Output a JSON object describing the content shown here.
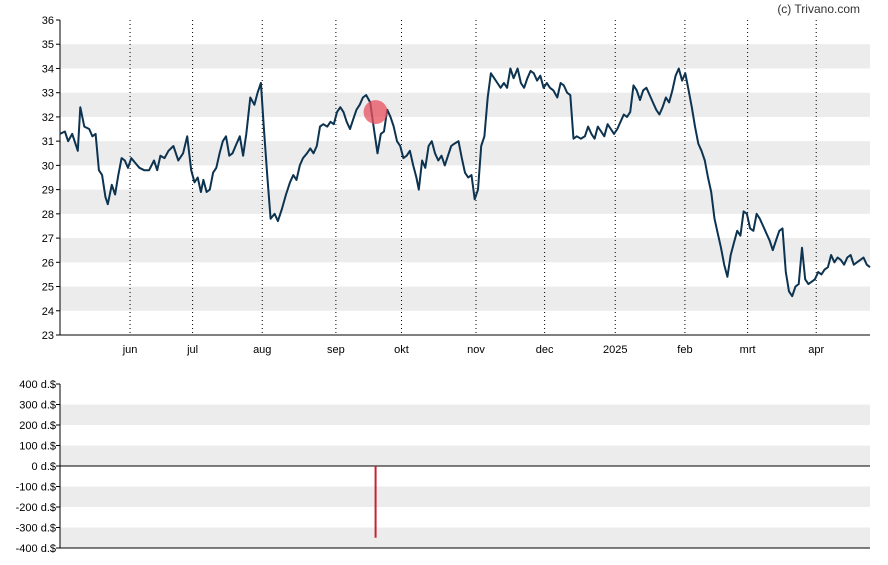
{
  "credit": "(c) Trivano.com",
  "colors": {
    "background": "#ffffff",
    "band": "#ececec",
    "line": "#0c3350",
    "marker": "#e8505f",
    "volume_bar": "#cc1f2f",
    "grid_vertical": "#000000",
    "axis": "#000000"
  },
  "chart_data": [
    {
      "type": "line",
      "name": "price",
      "ylim": [
        23,
        36
      ],
      "yticks": [
        23,
        24,
        25,
        26,
        27,
        28,
        29,
        30,
        31,
        32,
        33,
        34,
        35,
        36
      ],
      "ytick_labels": [
        "23",
        "24",
        "25",
        "26",
        "27",
        "28",
        "29",
        "30",
        "31",
        "32",
        "33",
        "34",
        "35",
        "36"
      ],
      "xticks": [
        {
          "label": "jun",
          "t": 0.0865
        },
        {
          "label": "jul",
          "t": 0.1637
        },
        {
          "label": "aug",
          "t": 0.2497
        },
        {
          "label": "sep",
          "t": 0.3406
        },
        {
          "label": "okt",
          "t": 0.4216
        },
        {
          "label": "nov",
          "t": 0.5136
        },
        {
          "label": "dec",
          "t": 0.5983
        },
        {
          "label": "2025",
          "t": 0.6855
        },
        {
          "label": "feb",
          "t": 0.7715
        },
        {
          "label": "mrt",
          "t": 0.8489
        },
        {
          "label": "apr",
          "t": 0.9336
        }
      ],
      "grid": "vertical-dotted-at-months",
      "points": [
        [
          0.0,
          31.3
        ],
        [
          0.006,
          31.4
        ],
        [
          0.01,
          31.0
        ],
        [
          0.015,
          31.3
        ],
        [
          0.019,
          30.9
        ],
        [
          0.022,
          30.6
        ],
        [
          0.025,
          32.4
        ],
        [
          0.03,
          31.6
        ],
        [
          0.036,
          31.5
        ],
        [
          0.04,
          31.2
        ],
        [
          0.044,
          31.3
        ],
        [
          0.048,
          29.8
        ],
        [
          0.052,
          29.6
        ],
        [
          0.056,
          28.7
        ],
        [
          0.059,
          28.4
        ],
        [
          0.064,
          29.2
        ],
        [
          0.068,
          28.8
        ],
        [
          0.072,
          29.6
        ],
        [
          0.076,
          30.3
        ],
        [
          0.08,
          30.2
        ],
        [
          0.084,
          29.9
        ],
        [
          0.088,
          30.3
        ],
        [
          0.093,
          30.1
        ],
        [
          0.098,
          29.9
        ],
        [
          0.104,
          29.8
        ],
        [
          0.11,
          29.8
        ],
        [
          0.116,
          30.2
        ],
        [
          0.12,
          29.8
        ],
        [
          0.124,
          30.4
        ],
        [
          0.129,
          30.3
        ],
        [
          0.134,
          30.6
        ],
        [
          0.14,
          30.8
        ],
        [
          0.146,
          30.2
        ],
        [
          0.152,
          30.5
        ],
        [
          0.157,
          31.2
        ],
        [
          0.162,
          29.8
        ],
        [
          0.166,
          29.3
        ],
        [
          0.17,
          29.5
        ],
        [
          0.174,
          28.9
        ],
        [
          0.177,
          29.4
        ],
        [
          0.181,
          28.9
        ],
        [
          0.185,
          29.0
        ],
        [
          0.189,
          29.7
        ],
        [
          0.193,
          29.9
        ],
        [
          0.197,
          30.5
        ],
        [
          0.201,
          31.0
        ],
        [
          0.205,
          31.2
        ],
        [
          0.209,
          30.4
        ],
        [
          0.213,
          30.5
        ],
        [
          0.218,
          30.9
        ],
        [
          0.222,
          31.2
        ],
        [
          0.226,
          30.4
        ],
        [
          0.23,
          31.3
        ],
        [
          0.235,
          32.8
        ],
        [
          0.24,
          32.5
        ],
        [
          0.244,
          33.0
        ],
        [
          0.248,
          33.4
        ],
        [
          0.252,
          31.4
        ],
        [
          0.256,
          29.5
        ],
        [
          0.26,
          27.8
        ],
        [
          0.265,
          28.0
        ],
        [
          0.269,
          27.7
        ],
        [
          0.274,
          28.2
        ],
        [
          0.279,
          28.8
        ],
        [
          0.284,
          29.3
        ],
        [
          0.288,
          29.6
        ],
        [
          0.292,
          29.4
        ],
        [
          0.296,
          30.0
        ],
        [
          0.3,
          30.3
        ],
        [
          0.305,
          30.5
        ],
        [
          0.309,
          30.7
        ],
        [
          0.313,
          30.5
        ],
        [
          0.317,
          30.8
        ],
        [
          0.321,
          31.6
        ],
        [
          0.325,
          31.7
        ],
        [
          0.33,
          31.6
        ],
        [
          0.334,
          31.8
        ],
        [
          0.338,
          31.7
        ],
        [
          0.342,
          32.2
        ],
        [
          0.346,
          32.4
        ],
        [
          0.35,
          32.2
        ],
        [
          0.354,
          31.8
        ],
        [
          0.358,
          31.5
        ],
        [
          0.362,
          31.9
        ],
        [
          0.366,
          32.3
        ],
        [
          0.37,
          32.5
        ],
        [
          0.374,
          32.8
        ],
        [
          0.378,
          32.9
        ],
        [
          0.383,
          32.6
        ],
        [
          0.388,
          31.4
        ],
        [
          0.392,
          30.5
        ],
        [
          0.396,
          31.3
        ],
        [
          0.4,
          31.4
        ],
        [
          0.404,
          32.3
        ],
        [
          0.408,
          32.0
        ],
        [
          0.412,
          31.6
        ],
        [
          0.416,
          31.0
        ],
        [
          0.42,
          30.8
        ],
        [
          0.424,
          30.3
        ],
        [
          0.428,
          30.4
        ],
        [
          0.432,
          30.6
        ],
        [
          0.436,
          30.0
        ],
        [
          0.44,
          29.5
        ],
        [
          0.443,
          29.0
        ],
        [
          0.447,
          30.2
        ],
        [
          0.451,
          29.9
        ],
        [
          0.455,
          30.8
        ],
        [
          0.459,
          31.0
        ],
        [
          0.463,
          30.5
        ],
        [
          0.467,
          30.2
        ],
        [
          0.471,
          30.4
        ],
        [
          0.475,
          30.0
        ],
        [
          0.479,
          30.4
        ],
        [
          0.483,
          30.8
        ],
        [
          0.487,
          30.9
        ],
        [
          0.492,
          31.0
        ],
        [
          0.496,
          30.3
        ],
        [
          0.5,
          29.7
        ],
        [
          0.504,
          29.5
        ],
        [
          0.508,
          29.6
        ],
        [
          0.512,
          28.6
        ],
        [
          0.516,
          29.0
        ],
        [
          0.52,
          30.8
        ],
        [
          0.524,
          31.2
        ],
        [
          0.528,
          32.8
        ],
        [
          0.532,
          33.8
        ],
        [
          0.536,
          33.6
        ],
        [
          0.54,
          33.4
        ],
        [
          0.544,
          33.2
        ],
        [
          0.548,
          33.4
        ],
        [
          0.552,
          33.2
        ],
        [
          0.556,
          34.0
        ],
        [
          0.56,
          33.6
        ],
        [
          0.565,
          34.0
        ],
        [
          0.569,
          33.4
        ],
        [
          0.573,
          33.2
        ],
        [
          0.577,
          33.6
        ],
        [
          0.581,
          33.9
        ],
        [
          0.585,
          33.8
        ],
        [
          0.589,
          33.5
        ],
        [
          0.593,
          33.7
        ],
        [
          0.597,
          33.2
        ],
        [
          0.601,
          33.4
        ],
        [
          0.605,
          33.2
        ],
        [
          0.609,
          33.1
        ],
        [
          0.614,
          32.8
        ],
        [
          0.618,
          33.4
        ],
        [
          0.622,
          33.3
        ],
        [
          0.626,
          33.0
        ],
        [
          0.63,
          32.9
        ],
        [
          0.634,
          31.1
        ],
        [
          0.638,
          31.2
        ],
        [
          0.643,
          31.1
        ],
        [
          0.648,
          31.2
        ],
        [
          0.652,
          31.6
        ],
        [
          0.656,
          31.3
        ],
        [
          0.66,
          31.1
        ],
        [
          0.664,
          31.6
        ],
        [
          0.668,
          31.4
        ],
        [
          0.672,
          31.2
        ],
        [
          0.676,
          31.7
        ],
        [
          0.68,
          31.5
        ],
        [
          0.684,
          31.3
        ],
        [
          0.688,
          31.5
        ],
        [
          0.692,
          31.8
        ],
        [
          0.696,
          32.1
        ],
        [
          0.7,
          32.0
        ],
        [
          0.704,
          32.2
        ],
        [
          0.708,
          33.3
        ],
        [
          0.712,
          33.1
        ],
        [
          0.716,
          32.7
        ],
        [
          0.72,
          33.1
        ],
        [
          0.724,
          33.2
        ],
        [
          0.728,
          32.9
        ],
        [
          0.732,
          32.6
        ],
        [
          0.736,
          32.3
        ],
        [
          0.74,
          32.1
        ],
        [
          0.744,
          32.4
        ],
        [
          0.748,
          32.8
        ],
        [
          0.752,
          32.6
        ],
        [
          0.756,
          33.1
        ],
        [
          0.76,
          33.7
        ],
        [
          0.764,
          34.0
        ],
        [
          0.768,
          33.5
        ],
        [
          0.772,
          33.8
        ],
        [
          0.776,
          33.1
        ],
        [
          0.78,
          32.4
        ],
        [
          0.784,
          31.6
        ],
        [
          0.788,
          30.9
        ],
        [
          0.792,
          30.6
        ],
        [
          0.796,
          30.2
        ],
        [
          0.8,
          29.5
        ],
        [
          0.804,
          28.9
        ],
        [
          0.808,
          27.8
        ],
        [
          0.812,
          27.2
        ],
        [
          0.816,
          26.6
        ],
        [
          0.82,
          25.9
        ],
        [
          0.824,
          25.4
        ],
        [
          0.828,
          26.3
        ],
        [
          0.832,
          26.8
        ],
        [
          0.836,
          27.3
        ],
        [
          0.84,
          27.1
        ],
        [
          0.844,
          28.1
        ],
        [
          0.848,
          28.0
        ],
        [
          0.852,
          27.4
        ],
        [
          0.856,
          27.3
        ],
        [
          0.86,
          28.0
        ],
        [
          0.864,
          27.8
        ],
        [
          0.868,
          27.5
        ],
        [
          0.872,
          27.2
        ],
        [
          0.876,
          26.9
        ],
        [
          0.88,
          26.5
        ],
        [
          0.884,
          26.9
        ],
        [
          0.888,
          27.3
        ],
        [
          0.892,
          27.4
        ],
        [
          0.896,
          25.6
        ],
        [
          0.9,
          24.8
        ],
        [
          0.904,
          24.6
        ],
        [
          0.908,
          25.0
        ],
        [
          0.912,
          25.1
        ],
        [
          0.916,
          26.6
        ],
        [
          0.92,
          25.3
        ],
        [
          0.924,
          25.1
        ],
        [
          0.928,
          25.2
        ],
        [
          0.932,
          25.3
        ],
        [
          0.936,
          25.6
        ],
        [
          0.94,
          25.5
        ],
        [
          0.944,
          25.7
        ],
        [
          0.948,
          25.8
        ],
        [
          0.952,
          26.3
        ],
        [
          0.956,
          26.0
        ],
        [
          0.96,
          26.2
        ],
        [
          0.964,
          26.1
        ],
        [
          0.968,
          25.9
        ],
        [
          0.972,
          26.2
        ],
        [
          0.976,
          26.3
        ],
        [
          0.98,
          25.9
        ],
        [
          0.984,
          26.0
        ],
        [
          0.988,
          26.1
        ],
        [
          0.992,
          26.2
        ],
        [
          0.996,
          25.9
        ],
        [
          1.0,
          25.8
        ]
      ],
      "marker": {
        "t": 0.3896,
        "value": 32.2
      }
    },
    {
      "type": "bar",
      "name": "volume",
      "ylim": [
        -400,
        400
      ],
      "yticks": [
        400,
        300,
        200,
        100,
        0,
        -100,
        -200,
        -300,
        -400
      ],
      "ytick_labels": [
        "400 d.$",
        "300 d.$",
        "200 d.$",
        "100 d.$",
        "0 d.$",
        "-100 d.$",
        "-200 d.$",
        "-300 d.$",
        "-400 d.$"
      ],
      "bars": [
        {
          "t": 0.3896,
          "value": -350
        }
      ]
    }
  ]
}
